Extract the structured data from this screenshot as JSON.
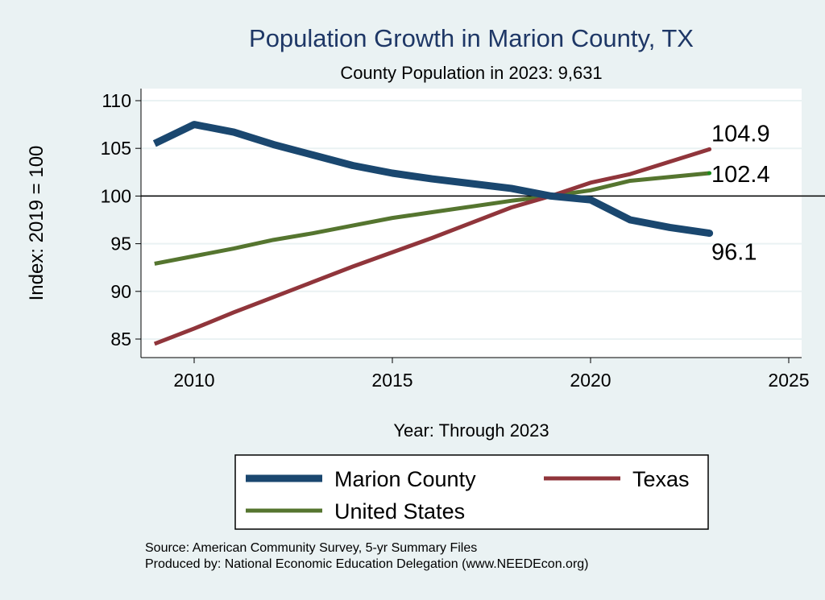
{
  "chart_data": {
    "type": "line",
    "title": "Population Growth in Marion County, TX",
    "subtitle": "County Population in 2023: 9,631",
    "xlabel": "Year: Through 2023",
    "ylabel": "Index: 2019 = 100",
    "xlim": [
      2008.7,
      2025.3
    ],
    "ylim": [
      84,
      111
    ],
    "xticks": [
      2010,
      2015,
      2020,
      2025
    ],
    "yticks": [
      85,
      90,
      95,
      100,
      105,
      110
    ],
    "reference_line": 100,
    "grid": true,
    "legend_position": "bottom",
    "x": [
      2009,
      2010,
      2011,
      2012,
      2013,
      2014,
      2015,
      2016,
      2017,
      2018,
      2019,
      2020,
      2021,
      2022,
      2023
    ],
    "series": [
      {
        "name": "Marion  County",
        "color": "#1a476f",
        "width": 9,
        "values": [
          105.5,
          107.5,
          106.7,
          105.4,
          104.3,
          103.2,
          102.4,
          101.8,
          101.3,
          100.8,
          100.0,
          99.6,
          97.5,
          96.7,
          96.1
        ],
        "end_label": "96.1"
      },
      {
        "name": "Texas",
        "color": "#90353b",
        "width": 5,
        "values": [
          84.5,
          86.1,
          87.8,
          89.4,
          91.0,
          92.6,
          94.1,
          95.6,
          97.2,
          98.8,
          100.0,
          101.4,
          102.3,
          103.6,
          104.9
        ],
        "end_label": "104.9"
      },
      {
        "name": "United States",
        "color": "#55752f",
        "width": 5,
        "values": [
          92.9,
          93.7,
          94.5,
          95.4,
          96.1,
          96.9,
          97.7,
          98.3,
          98.9,
          99.5,
          100.0,
          100.6,
          101.6,
          102.0,
          102.4
        ],
        "end_label": "102.4"
      }
    ]
  },
  "notes": {
    "source": "Source: American Community Survey, 5-yr Summary Files",
    "produced": "Produced by: National Economic Education Delegation (www.NEEDEcon.org)"
  }
}
